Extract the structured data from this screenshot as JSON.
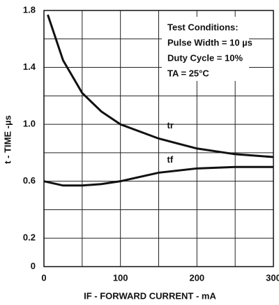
{
  "chart_data": {
    "type": "line",
    "xlabel": "IF - FORWARD CURRENT - mA",
    "ylabel": "t - TIME -µs",
    "annotations": [
      "Test Conditions:",
      "Pulse Width = 10 µs",
      "Duty Cycle = 10%",
      "TA = 25°C"
    ],
    "xlim": [
      0,
      300
    ],
    "ylim": [
      0,
      1.8
    ],
    "xticks": [
      0,
      100,
      200,
      300
    ],
    "yticks": [
      0,
      0.2,
      0.6,
      {
        "value": 1,
        "label": "1.0"
      },
      1.4,
      1.8
    ],
    "xgrid_minor": [
      50,
      150,
      250
    ],
    "ygrid_minor": [
      0.4,
      0.8,
      1.2,
      1.6
    ],
    "grid": true,
    "series": [
      {
        "name": "tr",
        "color": "#111111",
        "x": [
          5,
          25,
          50,
          75,
          100,
          150,
          200,
          250,
          300
        ],
        "values": [
          1.77,
          1.45,
          1.22,
          1.09,
          1.0,
          0.9,
          0.83,
          0.79,
          0.77
        ]
      },
      {
        "name": "tf",
        "color": "#111111",
        "x": [
          0,
          25,
          50,
          75,
          100,
          150,
          200,
          250,
          300
        ],
        "values": [
          0.6,
          0.57,
          0.57,
          0.58,
          0.6,
          0.66,
          0.69,
          0.7,
          0.7
        ]
      }
    ]
  }
}
